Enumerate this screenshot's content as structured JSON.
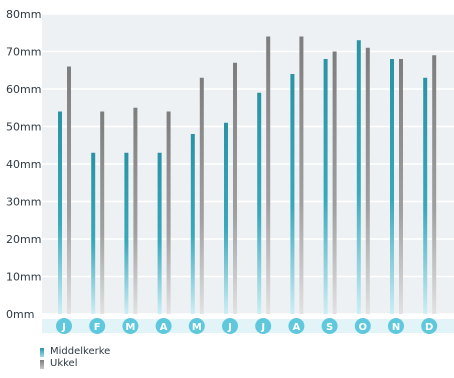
{
  "chart_data": {
    "type": "bar",
    "ylim": [
      0,
      80
    ],
    "yticks": [
      "0mm",
      "10mm",
      "20mm",
      "30mm",
      "40mm",
      "50mm",
      "60mm",
      "70mm",
      "80mm"
    ],
    "categories": [
      "J",
      "F",
      "M",
      "A",
      "M",
      "J",
      "J",
      "A",
      "S",
      "O",
      "N",
      "D"
    ],
    "series": [
      {
        "name": "Middelkerke",
        "color": "#2a93a6",
        "values": [
          54,
          43,
          43,
          43,
          48,
          51,
          59,
          64,
          68,
          73,
          68,
          63
        ]
      },
      {
        "name": "Ukkel",
        "color": "#8a8a8a",
        "values": [
          66,
          54,
          55,
          54,
          63,
          67,
          74,
          74,
          70,
          71,
          68,
          69
        ]
      }
    ],
    "legend": "bottom-left",
    "grid": true
  },
  "colors": {
    "plot_bg": "#eef1f3",
    "month_circle": "#5fc8dd",
    "axis_bar": "#6cc9dc"
  }
}
